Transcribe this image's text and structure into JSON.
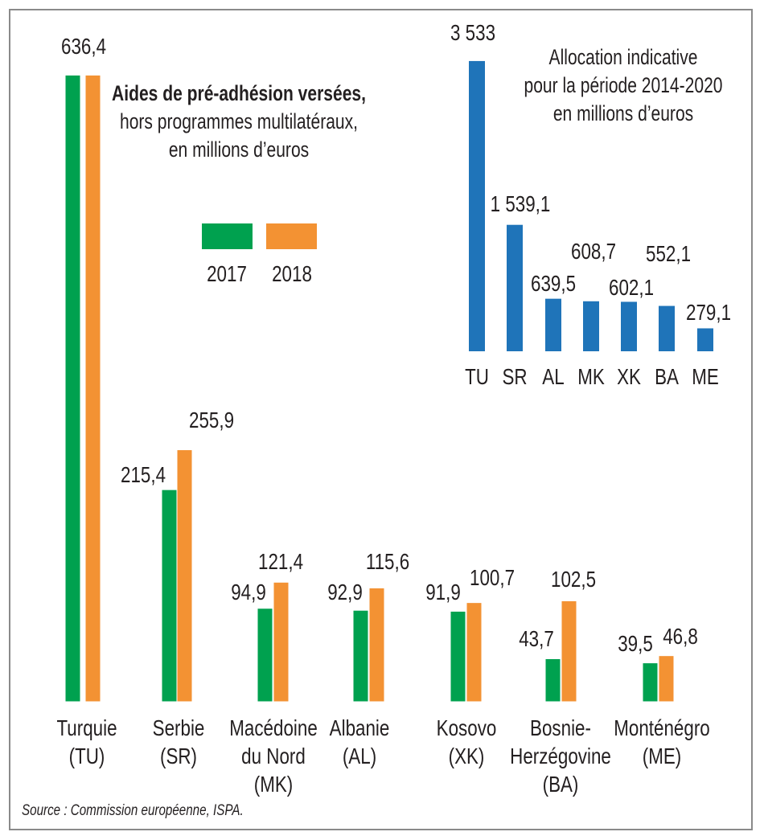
{
  "chart_data": [
    {
      "type": "bar",
      "title": "Aides de pré-adhésion versées,",
      "subtitle": [
        "hors programmes multilatéraux,",
        "en millions d’euros"
      ],
      "categories": [
        [
          "Turquie",
          "(TU)"
        ],
        [
          "Serbie",
          "(SR)"
        ],
        [
          "Macédoine",
          "du Nord",
          "(MK)"
        ],
        [
          "Albanie",
          "(AL)"
        ],
        [
          "Kosovo",
          "(XK)"
        ],
        [
          "Bosnie-",
          "Herzégovine",
          "(BA)"
        ],
        [
          "Monténégro",
          "(ME)"
        ]
      ],
      "series": [
        {
          "name": "2017",
          "color": "#00a14f",
          "values": [
            636.4,
            215.4,
            94.9,
            92.9,
            91.9,
            43.7,
            39.5
          ],
          "labels": [
            "636,4",
            "215,4",
            "94,9",
            "92,9",
            "91,9",
            "43,7",
            "39,5"
          ]
        },
        {
          "name": "2018",
          "color": "#f39233",
          "values": [
            636.4,
            255.9,
            121.4,
            115.6,
            100.7,
            102.5,
            46.8
          ],
          "labels": [
            "",
            "255,9",
            "121,4",
            "115,6",
            "100,7",
            "102,5",
            "46,8"
          ]
        }
      ],
      "legend": "center",
      "grid": false
    },
    {
      "type": "bar",
      "title": [
        "Allocation indicative",
        "pour la période 2014-2020",
        "en millions d’euros"
      ],
      "categories": [
        "TU",
        "SR",
        "AL",
        "MK",
        "XK",
        "BA",
        "ME"
      ],
      "values": [
        3533,
        1539.1,
        639.5,
        608.7,
        602.1,
        552.1,
        279.1
      ],
      "labels": [
        "3 533",
        "1 539,1",
        "639,5",
        "608,7",
        "602,1",
        "552,1",
        "279,1"
      ],
      "color": "#1f74b9",
      "grid": false
    }
  ],
  "source": "Source : Commission européenne, ISPA."
}
